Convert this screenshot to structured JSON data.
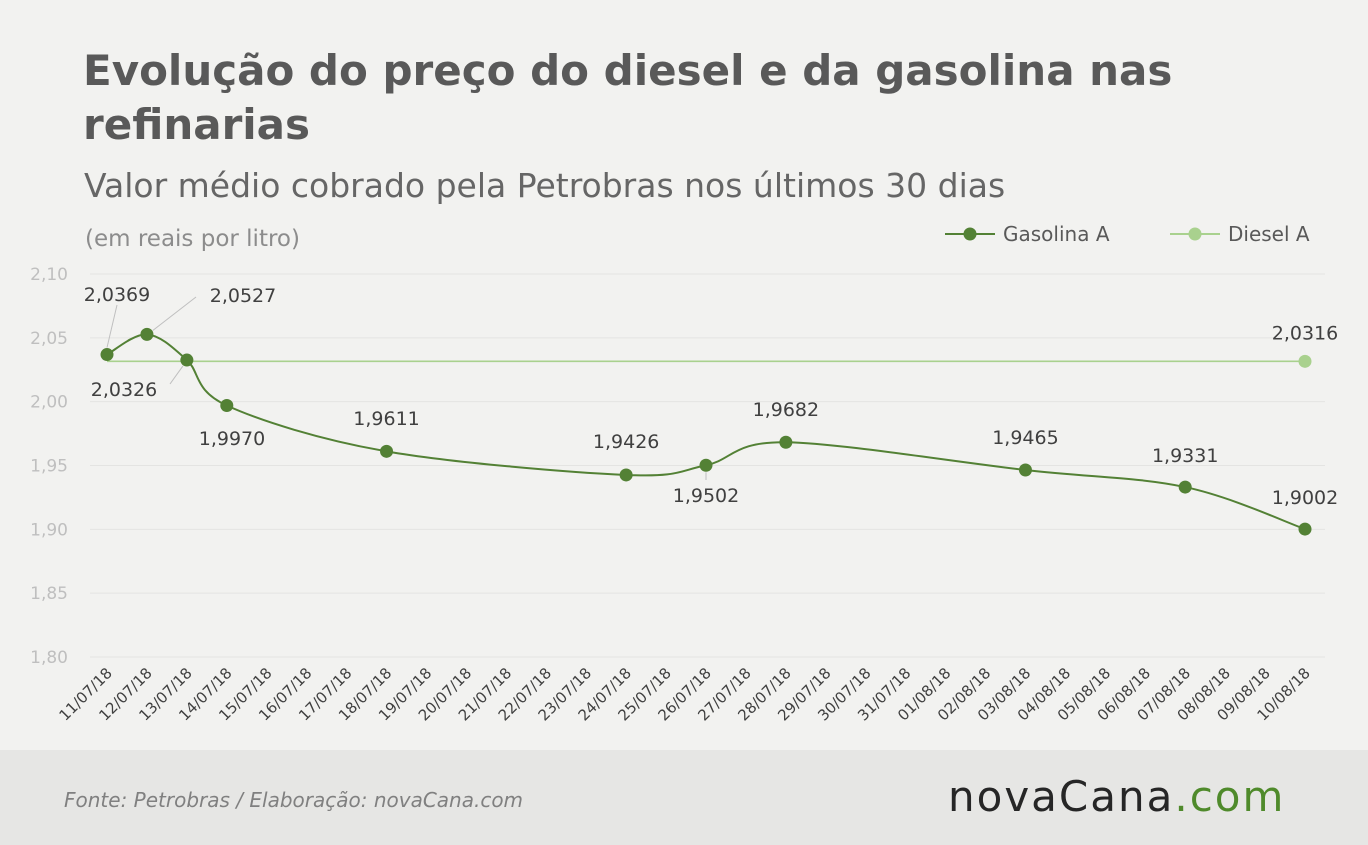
{
  "title": "Evolução do preço do diesel e da gasolina nas refinarias",
  "subtitle": "Valor médio cobrado pela Petrobras nos últimos 30 dias",
  "unit_note": "(em reais por litro)",
  "footer": {
    "source": "Fonte:  Petrobras  / Elaboração:  novaCana.com",
    "logo_main": "novaCana",
    "logo_dot": ".",
    "logo_com": "com"
  },
  "colors": {
    "gasolina": "#538135",
    "diesel": "#a9d18e",
    "grid": "#e4e4e2",
    "background": "#f2f2f0"
  },
  "chart_data": {
    "type": "line",
    "title": "Evolução do preço do diesel e da gasolina nas refinarias",
    "subtitle": "Valor médio cobrado pela Petrobras nos últimos 30 dias",
    "ylabel": "(em reais por litro)",
    "xlabel": "",
    "ylim": [
      1.8,
      2.1
    ],
    "y_ticks": [
      "1,80",
      "1,85",
      "1,90",
      "1,95",
      "2,00",
      "2,05",
      "2,10"
    ],
    "y_tick_values": [
      1.8,
      1.85,
      1.9,
      1.95,
      2.0,
      2.05,
      2.1
    ],
    "grid": true,
    "legend_position": "top-right",
    "categories": [
      "11/07/18",
      "12/07/18",
      "13/07/18",
      "14/07/18",
      "15/07/18",
      "16/07/18",
      "17/07/18",
      "18/07/18",
      "19/07/18",
      "20/07/18",
      "21/07/18",
      "22/07/18",
      "23/07/18",
      "24/07/18",
      "25/07/18",
      "26/07/18",
      "27/07/18",
      "28/07/18",
      "29/07/18",
      "30/07/18",
      "31/07/18",
      "01/08/18",
      "02/08/18",
      "03/08/18",
      "04/08/18",
      "05/08/18",
      "06/08/18",
      "07/08/18",
      "08/08/18",
      "09/08/18",
      "10/08/18"
    ],
    "series": [
      {
        "name": "Gasolina A",
        "points": [
          {
            "x": "11/07/18",
            "y": 2.0369,
            "label": "2,0369"
          },
          {
            "x": "12/07/18",
            "y": 2.0527,
            "label": "2,0527"
          },
          {
            "x": "13/07/18",
            "y": 2.0326,
            "label": "2,0326"
          },
          {
            "x": "14/07/18",
            "y": 1.997,
            "label": "1,9970"
          },
          {
            "x": "18/07/18",
            "y": 1.9611,
            "label": "1,9611"
          },
          {
            "x": "24/07/18",
            "y": 1.9426,
            "label": "1,9426"
          },
          {
            "x": "26/07/18",
            "y": 1.9502,
            "label": "1,9502"
          },
          {
            "x": "28/07/18",
            "y": 1.9682,
            "label": "1,9682"
          },
          {
            "x": "03/08/18",
            "y": 1.9465,
            "label": "1,9465"
          },
          {
            "x": "07/08/18",
            "y": 1.9331,
            "label": "1,9331"
          },
          {
            "x": "10/08/18",
            "y": 1.9002,
            "label": "1,9002"
          }
        ]
      },
      {
        "name": "Diesel A",
        "points": [
          {
            "x": "11/07/18",
            "y": 2.0316,
            "label": ""
          },
          {
            "x": "10/08/18",
            "y": 2.0316,
            "label": "2,0316"
          }
        ]
      }
    ]
  }
}
